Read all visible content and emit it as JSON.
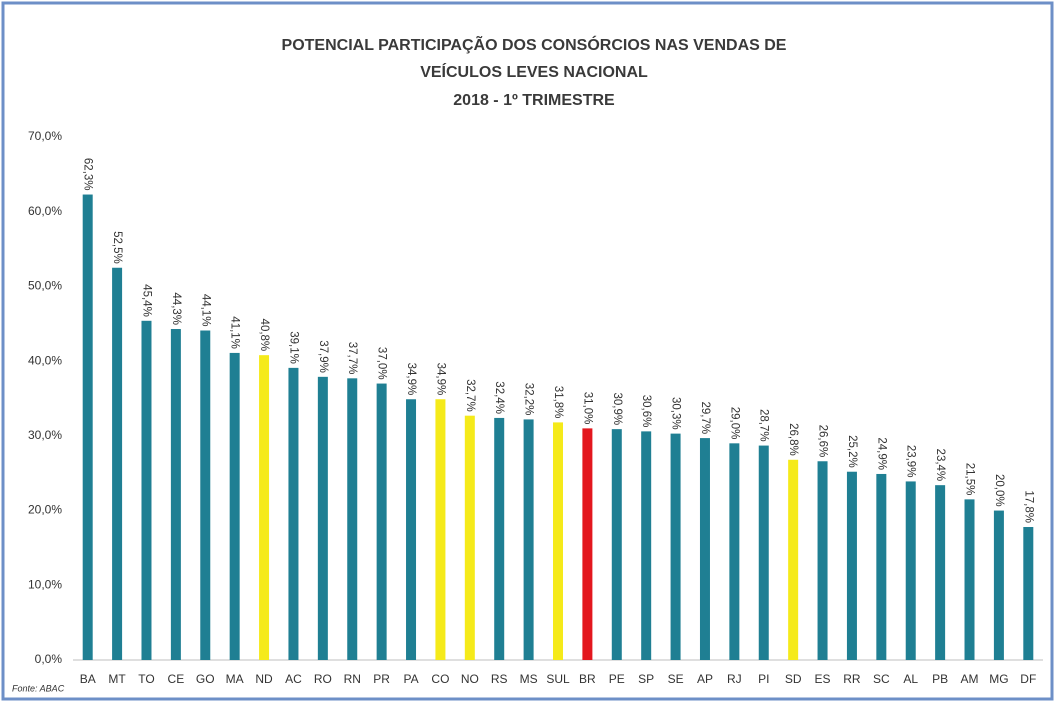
{
  "chart_data": {
    "type": "bar",
    "title": [
      "POTENCIAL PARTICIPAÇÃO DOS CONSÓRCIOS NAS VENDAS DE",
      "VEÍCULOS LEVES NACIONAL",
      "2018 - 1º TRIMESTRE"
    ],
    "source": "Fonte: ABAC",
    "categories": [
      "BA",
      "MT",
      "TO",
      "CE",
      "GO",
      "MA",
      "ND",
      "AC",
      "RO",
      "RN",
      "PR",
      "PA",
      "CO",
      "NO",
      "RS",
      "MS",
      "SUL",
      "BR",
      "PE",
      "SP",
      "SE",
      "AP",
      "RJ",
      "PI",
      "SD",
      "ES",
      "RR",
      "SC",
      "AL",
      "PB",
      "AM",
      "MG",
      "DF"
    ],
    "values": [
      62.3,
      52.5,
      45.4,
      44.3,
      44.1,
      41.1,
      40.8,
      39.1,
      37.9,
      37.7,
      37.0,
      34.9,
      34.9,
      32.7,
      32.4,
      32.2,
      31.8,
      31.0,
      30.9,
      30.6,
      30.3,
      29.7,
      29.0,
      28.7,
      26.8,
      26.6,
      25.2,
      24.9,
      23.9,
      23.4,
      21.5,
      20.0,
      17.8
    ],
    "value_labels": [
      "62,3%",
      "52,5%",
      "45,4%",
      "44,3%",
      "44,1%",
      "41,1%",
      "40,8%",
      "39,1%",
      "37,9%",
      "37,7%",
      "37,0%",
      "34,9%",
      "34,9%",
      "32,7%",
      "32,4%",
      "32,2%",
      "31,8%",
      "31,0%",
      "30,9%",
      "30,6%",
      "30,3%",
      "29,7%",
      "29,0%",
      "28,7%",
      "26,8%",
      "26,6%",
      "25,2%",
      "24,9%",
      "23,9%",
      "23,4%",
      "21,5%",
      "20,0%",
      "17,8%"
    ],
    "colors": [
      "#1f7f93",
      "#1f7f93",
      "#1f7f93",
      "#1f7f93",
      "#1f7f93",
      "#1f7f93",
      "#f5ea1a",
      "#1f7f93",
      "#1f7f93",
      "#1f7f93",
      "#1f7f93",
      "#1f7f93",
      "#f5ea1a",
      "#f5ea1a",
      "#1f7f93",
      "#1f7f93",
      "#f5ea1a",
      "#e3171e",
      "#1f7f93",
      "#1f7f93",
      "#1f7f93",
      "#1f7f93",
      "#1f7f93",
      "#1f7f93",
      "#f5ea1a",
      "#1f7f93",
      "#1f7f93",
      "#1f7f93",
      "#1f7f93",
      "#1f7f93",
      "#1f7f93",
      "#1f7f93",
      "#1f7f93"
    ],
    "ylim": [
      0,
      70
    ],
    "yticks": [
      {
        "value": 0,
        "label": "0,0%"
      },
      {
        "value": 10,
        "label": "10,0%"
      },
      {
        "value": 20,
        "label": "20,0%"
      },
      {
        "value": 30,
        "label": "30,0%"
      },
      {
        "value": 40,
        "label": "40,0%"
      },
      {
        "value": 50,
        "label": "50,0%"
      },
      {
        "value": 60,
        "label": "60,0%"
      },
      {
        "value": 70,
        "label": "70,0%"
      }
    ],
    "grid": false
  }
}
